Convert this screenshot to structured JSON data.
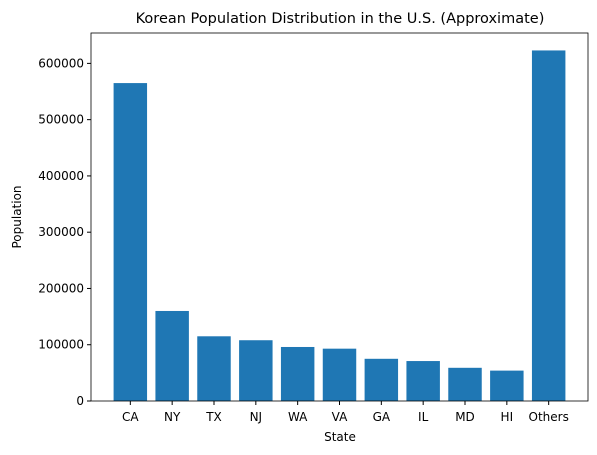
{
  "chart_data": {
    "type": "bar",
    "title": "Korean Population Distribution in the U.S. (Approximate)",
    "x_label": "State",
    "y_label": "Population",
    "categories": [
      "CA",
      "NY",
      "TX",
      "NJ",
      "WA",
      "VA",
      "GA",
      "IL",
      "MD",
      "HI",
      "Others"
    ],
    "values": [
      565000,
      160000,
      115000,
      108000,
      96000,
      93000,
      75000,
      71000,
      59000,
      54000,
      623000
    ],
    "color": "#1f77b4",
    "ylim": [
      0,
      654000
    ],
    "yticks": [
      0,
      100000,
      200000,
      300000,
      400000,
      500000,
      600000
    ],
    "grid": false
  }
}
